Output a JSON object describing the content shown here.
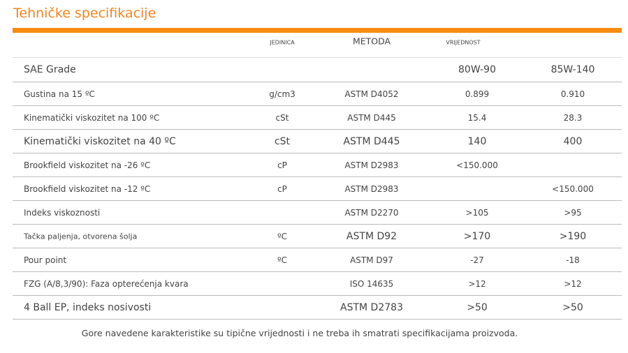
{
  "title": "Tehničke specifikacije",
  "header": {
    "unit": "JEDINICA",
    "method": "METODA",
    "value": "VRIJEDNOST"
  },
  "grades": {
    "label": "SAE Grade",
    "g1": "80W-90",
    "g2": "85W-140"
  },
  "rows": [
    {
      "name": "Gustina na 15 ºC",
      "unit": "g/cm3",
      "method": "ASTM D4052",
      "v1": "0.899",
      "v2": "0.910"
    },
    {
      "name": "Kinematički viskozitet na 100 ºC",
      "unit": "cSt",
      "method": "ASTM D445",
      "v1": "15.4",
      "v2": "28.3"
    },
    {
      "name": "Kinematički viskozitet na 40 ºC",
      "unit": "cSt",
      "method": "ASTM D445",
      "v1": "140",
      "v2": "400"
    },
    {
      "name": "Brookfield viskozitet na -26 ºC",
      "unit": "cP",
      "method": "ASTM D2983",
      "v1": "<150.000",
      "v2": ""
    },
    {
      "name": "Brookfield viskozitet na -12 ºC",
      "unit": "cP",
      "method": "ASTM D2983",
      "v1": "",
      "v2": "<150.000"
    },
    {
      "name": "Indeks viskoznosti",
      "unit": "",
      "method": "ASTM D2270",
      "v1": ">105",
      "v2": ">95"
    },
    {
      "name": "Tačka paljenja, otvorena šolja",
      "unit": "ºC",
      "method": "ASTM D92",
      "v1": ">170",
      "v2": ">190"
    },
    {
      "name": "Pour point",
      "unit": "ºC",
      "method": "ASTM D97",
      "v1": "-27",
      "v2": "-18"
    },
    {
      "name": "FZG (A/8,3/90): Faza opterećenja kvara",
      "unit": "",
      "method": "ISO 14635",
      "v1": ">12",
      "v2": ">12"
    },
    {
      "name": "4 Ball EP, indeks nosivosti",
      "unit": "",
      "method": "ASTM D2783",
      "v1": ">50",
      "v2": ">50"
    }
  ],
  "footnote": "Gore navedene karakteristike su tipične vrijednosti i ne treba ih smatrati specifikacijama proizvoda.",
  "colors": {
    "accent": "#f88b12",
    "title": "#f5841f"
  }
}
